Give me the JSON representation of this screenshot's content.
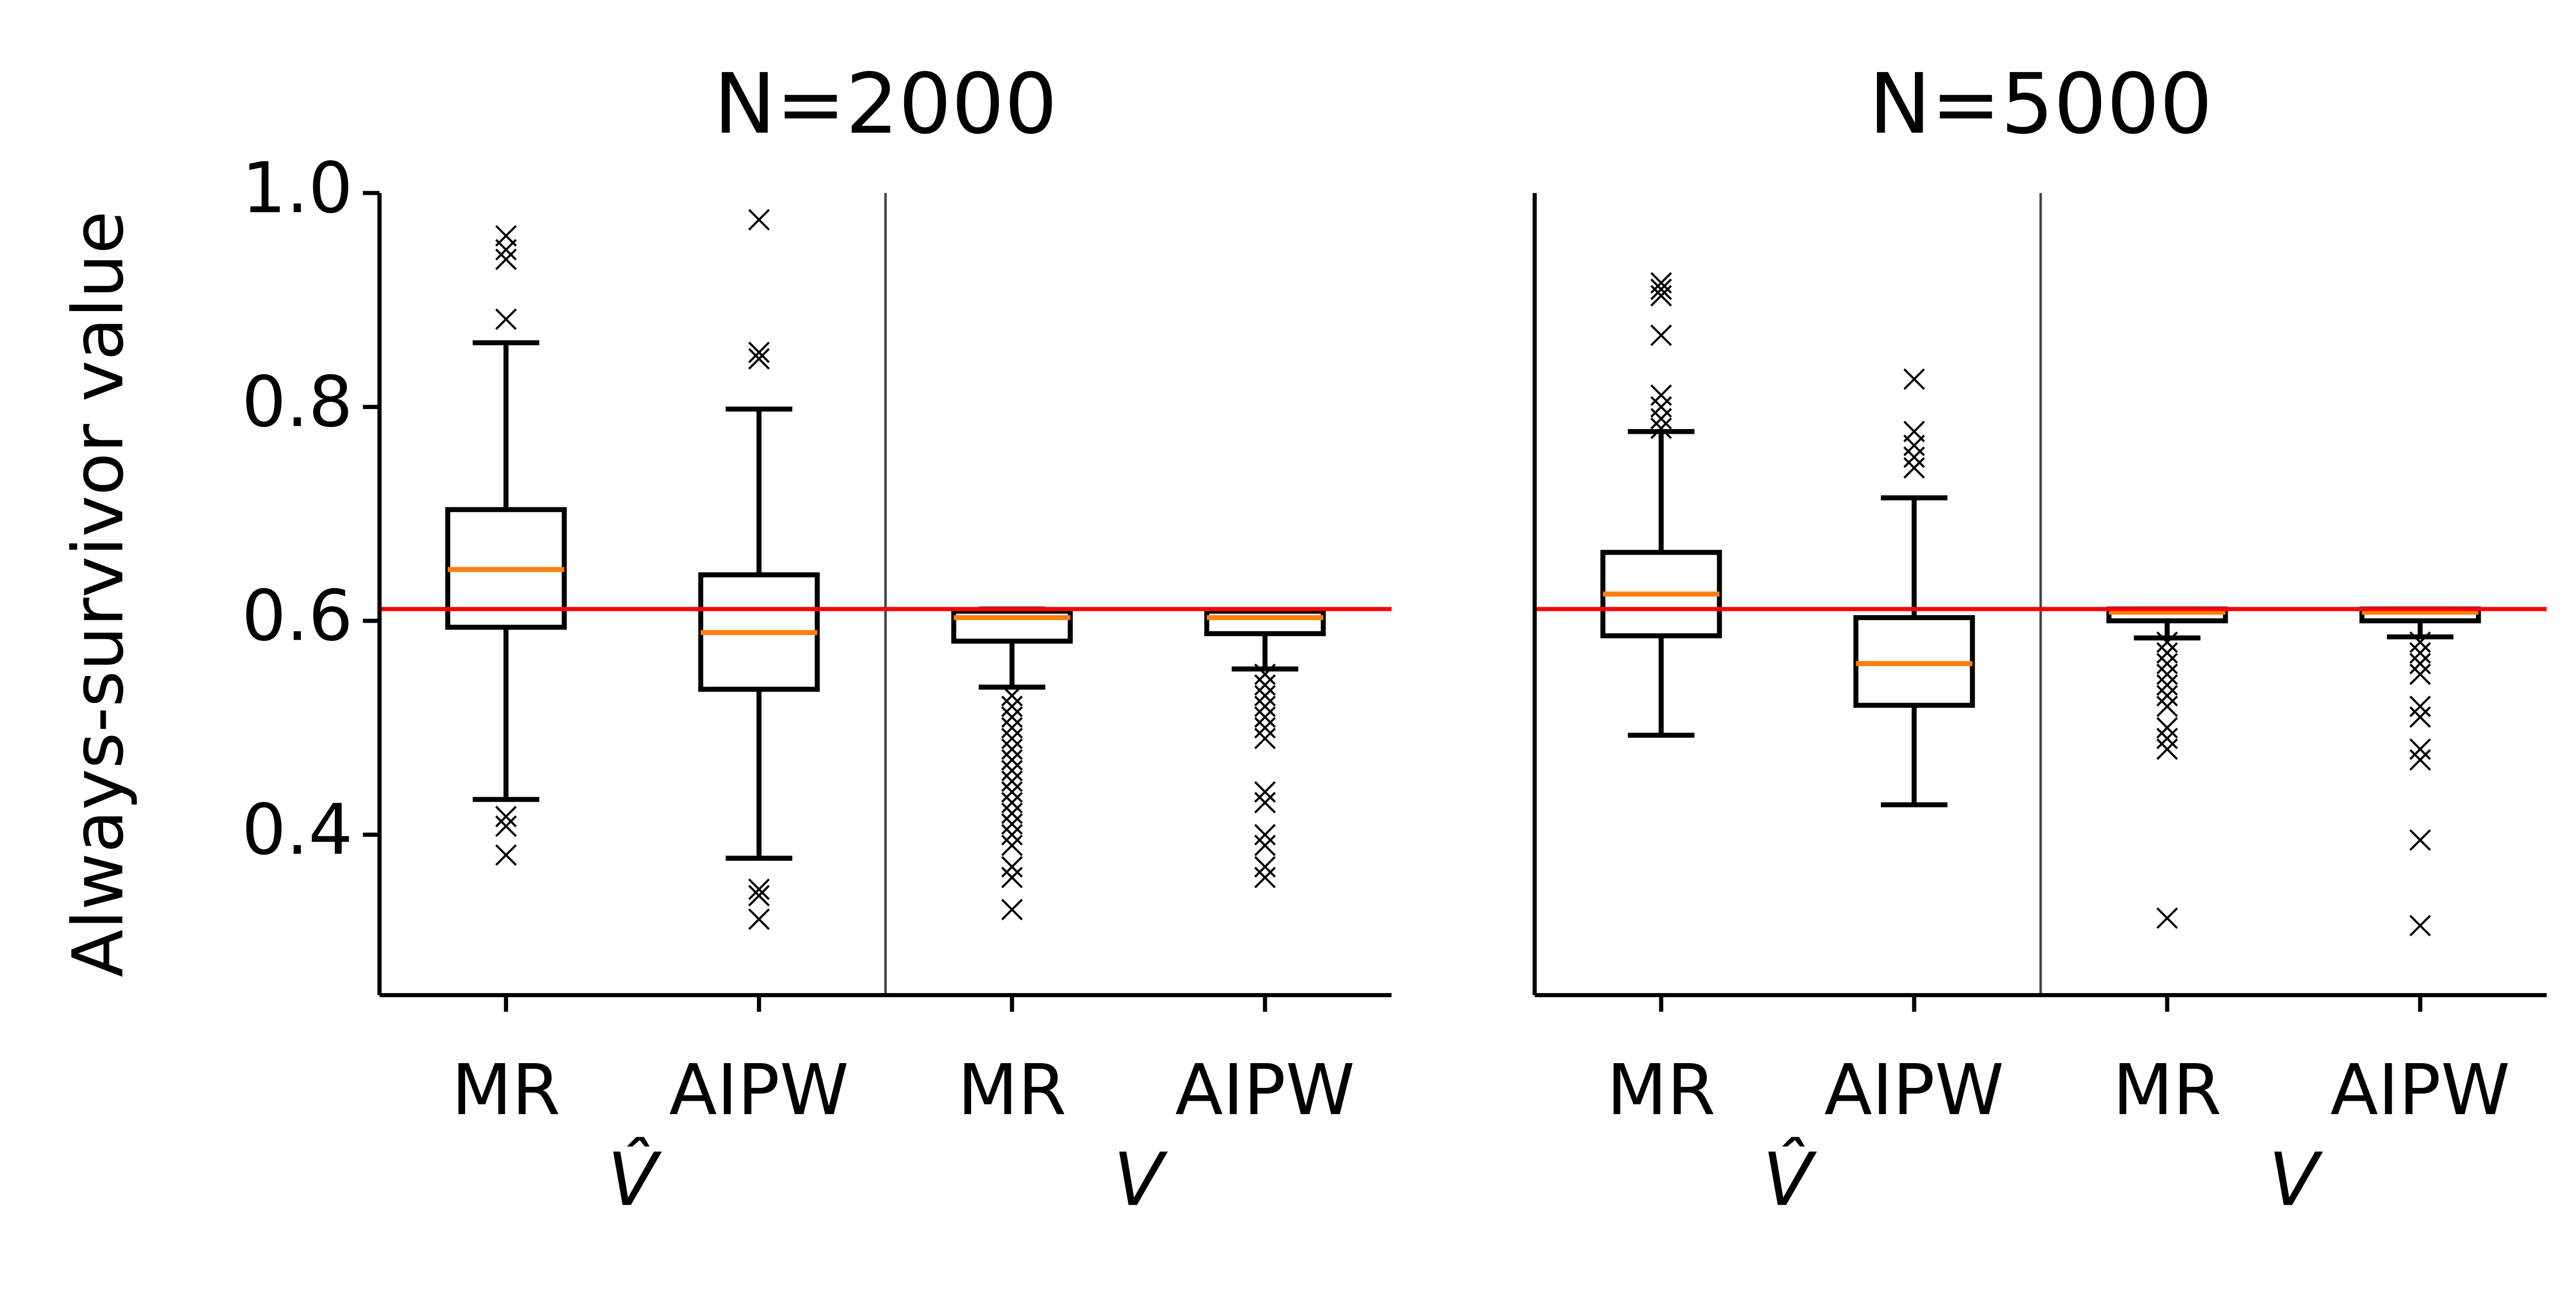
{
  "chart_data": [
    {
      "type": "box",
      "title": "N=2000",
      "ylabel": "Always-survivor value",
      "categories": [
        "MR",
        "AIPW",
        "MR",
        "AIPW"
      ],
      "group_labels": [
        "V̂",
        "V"
      ],
      "ylim": [
        0.25,
        1.0
      ],
      "yticks": [
        0.4,
        0.6,
        0.8,
        {
          "value": 1.0,
          "label": "1.0"
        }
      ],
      "color": "#000000",
      "median_color": "#ff7f0e",
      "reference": 0.611,
      "reference_color": "#ff0000",
      "boxes": [
        {
          "whislo": 0.433,
          "q1": 0.594,
          "med": 0.648,
          "q3": 0.704,
          "whishi": 0.86,
          "fliers": [
            0.96,
            0.947,
            0.938,
            0.882,
            0.417,
            0.408,
            0.381
          ]
        },
        {
          "whislo": 0.378,
          "q1": 0.536,
          "med": 0.589,
          "q3": 0.643,
          "whishi": 0.798,
          "fliers": [
            0.975,
            0.851,
            0.845,
            0.349,
            0.343,
            0.321
          ]
        },
        {
          "whislo": 0.538,
          "q1": 0.581,
          "med": 0.603,
          "q3": 0.609,
          "whishi": 0.611,
          "fliers": [
            0.53,
            0.52,
            0.51,
            0.5,
            0.49,
            0.48,
            0.47,
            0.46,
            0.45,
            0.44,
            0.43,
            0.42,
            0.41,
            0.4,
            0.39,
            0.37,
            0.36,
            0.33
          ]
        },
        {
          "whislo": 0.555,
          "q1": 0.588,
          "med": 0.603,
          "q3": 0.609,
          "whishi": 0.61,
          "fliers": [
            0.55,
            0.54,
            0.53,
            0.52,
            0.51,
            0.5,
            0.49,
            0.44,
            0.43,
            0.4,
            0.39,
            0.37,
            0.36
          ]
        }
      ]
    },
    {
      "type": "box",
      "title": "N=5000",
      "categories": [
        "MR",
        "AIPW",
        "MR",
        "AIPW"
      ],
      "group_labels": [
        "V̂",
        "V"
      ],
      "ylim": [
        0.25,
        1.0
      ],
      "color": "#000000",
      "median_color": "#ff7f0e",
      "reference": 0.611,
      "reference_color": "#ff0000",
      "boxes": [
        {
          "whislo": 0.493,
          "q1": 0.586,
          "med": 0.625,
          "q3": 0.664,
          "whishi": 0.777,
          "fliers": [
            0.916,
            0.91,
            0.904,
            0.867,
            0.811,
            0.8,
            0.789,
            0.78
          ]
        },
        {
          "whislo": 0.428,
          "q1": 0.521,
          "med": 0.56,
          "q3": 0.603,
          "whishi": 0.715,
          "fliers": [
            0.826,
            0.777,
            0.764,
            0.753,
            0.743
          ]
        },
        {
          "whislo": 0.584,
          "q1": 0.6,
          "med": 0.608,
          "q3": 0.611,
          "whishi": 0.611,
          "fliers": [
            0.58,
            0.57,
            0.56,
            0.55,
            0.54,
            0.53,
            0.52,
            0.5,
            0.49,
            0.48,
            0.322
          ]
        },
        {
          "whislo": 0.585,
          "q1": 0.6,
          "med": 0.608,
          "q3": 0.611,
          "whishi": 0.611,
          "fliers": [
            0.58,
            0.57,
            0.56,
            0.55,
            0.52,
            0.51,
            0.48,
            0.47,
            0.395,
            0.315
          ]
        }
      ]
    }
  ]
}
